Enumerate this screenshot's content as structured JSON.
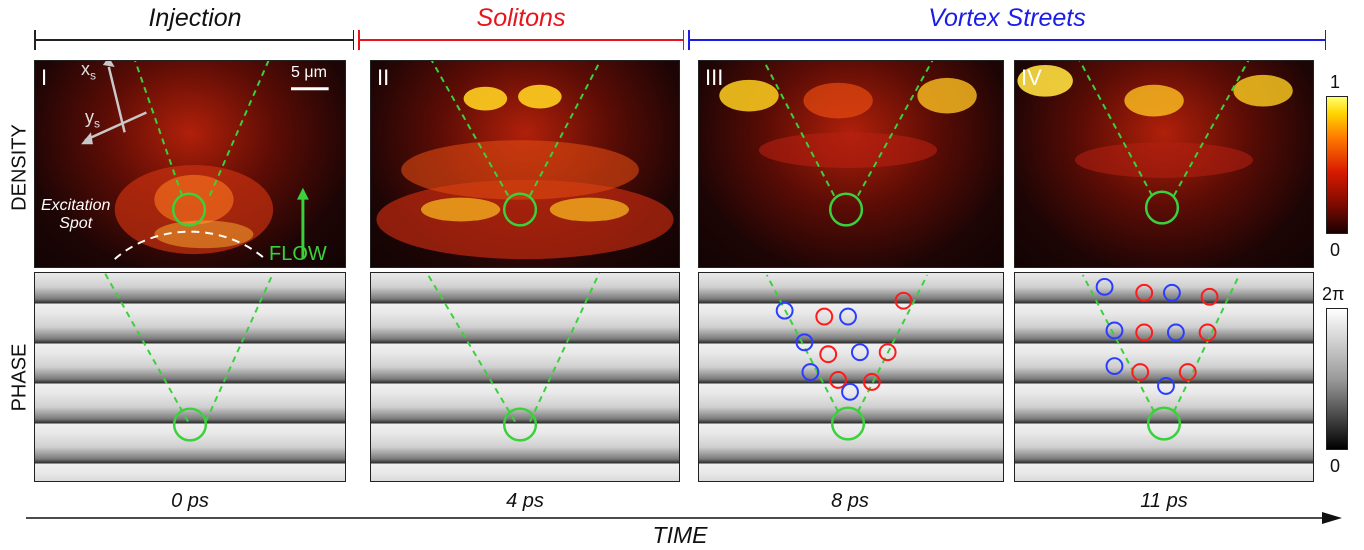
{
  "phases": {
    "injection": {
      "label": "Injection",
      "color": "#000000"
    },
    "solitons": {
      "label": "Solitons",
      "color": "#e8141c"
    },
    "vortex": {
      "label": "Vortex Streets",
      "color": "#1c1ce8"
    }
  },
  "rows": {
    "density": "DENSITY",
    "phase": "PHASE"
  },
  "panels": [
    {
      "numeral": "I",
      "time": "0 ps"
    },
    {
      "numeral": "II",
      "time": "4 ps"
    },
    {
      "numeral": "III",
      "time": "8 ps"
    },
    {
      "numeral": "IV",
      "time": "11 ps"
    }
  ],
  "annotations": {
    "scale_bar": "5 μm",
    "axis_x": "x",
    "axis_y": "y",
    "axis_subscript": "s",
    "excitation_line1": "Excitation",
    "excitation_line2": "Spot",
    "flow": "FLOW"
  },
  "colorbars": {
    "density": {
      "max": "1",
      "min": "0"
    },
    "phase": {
      "max": "2π",
      "min": "0"
    }
  },
  "time_axis": "TIME",
  "colors": {
    "guide": "#3ad13a",
    "vortex_blue": "#2a3cff",
    "vortex_red": "#ff1a1a"
  }
}
